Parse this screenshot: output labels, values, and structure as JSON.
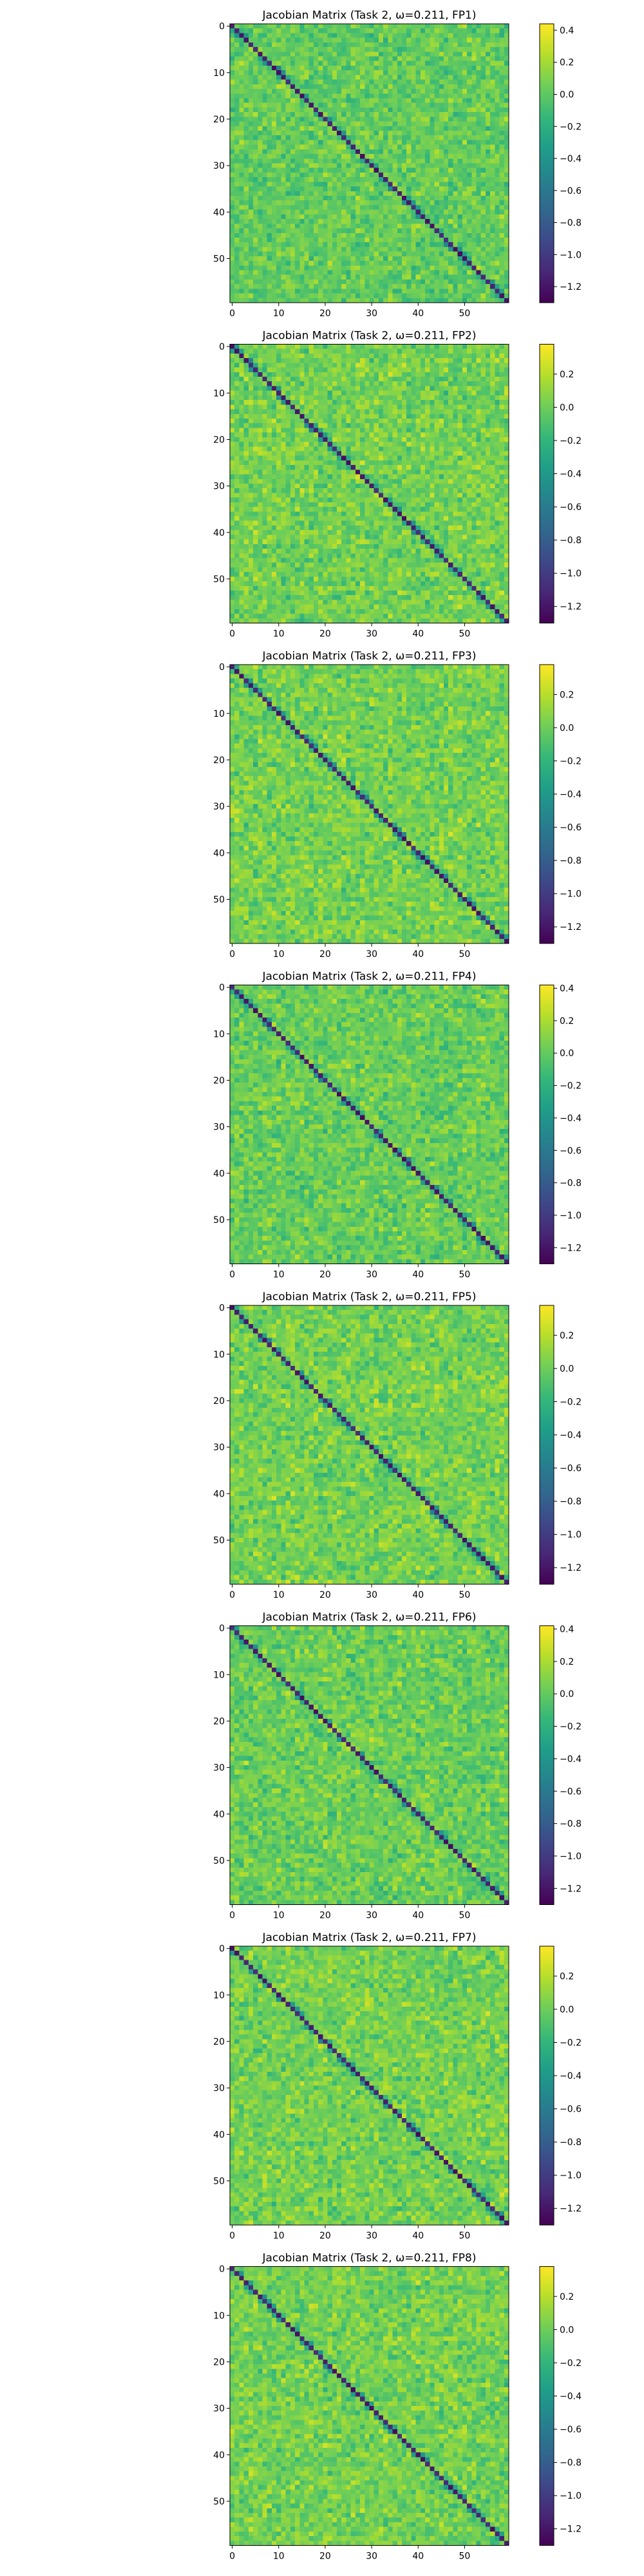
{
  "figure": {
    "background": "#ffffff",
    "colormap": "viridis",
    "colors": {
      "viridis_stops": [
        "#440154",
        "#482878",
        "#3e4989",
        "#31688e",
        "#26828e",
        "#1f9e89",
        "#35b779",
        "#6ece58",
        "#b5de2b",
        "#fde725"
      ]
    }
  },
  "chart_data": [
    {
      "type": "heatmap",
      "title": "Jacobian Matrix (Task 2, ω=0.211, FP1)",
      "matrix_size": 60,
      "xticks": [
        0,
        10,
        20,
        30,
        40,
        50
      ],
      "yticks": [
        0,
        10,
        20,
        30,
        40,
        50
      ],
      "xlim": [
        -0.5,
        59.5
      ],
      "ylim": [
        59.5,
        -0.5
      ],
      "colorbar": {
        "vmin": -1.3,
        "vmax": 0.44,
        "ticks": [
          -1.2,
          -1.0,
          -0.8,
          -0.6,
          -0.4,
          -0.2,
          0.0,
          0.2,
          0.4
        ]
      },
      "diagonal_mean": -1.15,
      "offdiag_mean": 0.02,
      "offdiag_spread": 0.18,
      "seed": 11
    },
    {
      "type": "heatmap",
      "title": "Jacobian Matrix (Task 2, ω=0.211, FP2)",
      "matrix_size": 60,
      "xticks": [
        0,
        10,
        20,
        30,
        40,
        50
      ],
      "yticks": [
        0,
        10,
        20,
        30,
        40,
        50
      ],
      "xlim": [
        -0.5,
        59.5
      ],
      "ylim": [
        59.5,
        -0.5
      ],
      "colorbar": {
        "vmin": -1.3,
        "vmax": 0.38,
        "ticks": [
          -1.2,
          -1.0,
          -0.8,
          -0.6,
          -0.4,
          -0.2,
          0.0,
          0.2
        ]
      },
      "diagonal_mean": -1.15,
      "offdiag_mean": 0.02,
      "offdiag_spread": 0.18,
      "seed": 23
    },
    {
      "type": "heatmap",
      "title": "Jacobian Matrix (Task 2, ω=0.211, FP3)",
      "matrix_size": 60,
      "xticks": [
        0,
        10,
        20,
        30,
        40,
        50
      ],
      "yticks": [
        0,
        10,
        20,
        30,
        40,
        50
      ],
      "xlim": [
        -0.5,
        59.5
      ],
      "ylim": [
        59.5,
        -0.5
      ],
      "colorbar": {
        "vmin": -1.3,
        "vmax": 0.38,
        "ticks": [
          -1.2,
          -1.0,
          -0.8,
          -0.6,
          -0.4,
          -0.2,
          0.0,
          0.2
        ]
      },
      "diagonal_mean": -1.15,
      "offdiag_mean": 0.02,
      "offdiag_spread": 0.18,
      "seed": 37
    },
    {
      "type": "heatmap",
      "title": "Jacobian Matrix (Task 2, ω=0.211, FP4)",
      "matrix_size": 60,
      "xticks": [
        0,
        10,
        20,
        30,
        40,
        50
      ],
      "yticks": [
        0,
        10,
        20,
        30,
        40,
        50
      ],
      "xlim": [
        -0.5,
        59.5
      ],
      "ylim": [
        59.5,
        -0.5
      ],
      "colorbar": {
        "vmin": -1.3,
        "vmax": 0.42,
        "ticks": [
          -1.2,
          -1.0,
          -0.8,
          -0.6,
          -0.4,
          -0.2,
          0.0,
          0.2,
          0.4
        ]
      },
      "diagonal_mean": -1.15,
      "offdiag_mean": 0.02,
      "offdiag_spread": 0.18,
      "seed": 41
    },
    {
      "type": "heatmap",
      "title": "Jacobian Matrix (Task 2, ω=0.211, FP5)",
      "matrix_size": 60,
      "xticks": [
        0,
        10,
        20,
        30,
        40,
        50
      ],
      "yticks": [
        0,
        10,
        20,
        30,
        40,
        50
      ],
      "xlim": [
        -0.5,
        59.5
      ],
      "ylim": [
        59.5,
        -0.5
      ],
      "colorbar": {
        "vmin": -1.3,
        "vmax": 0.38,
        "ticks": [
          -1.2,
          -1.0,
          -0.8,
          -0.6,
          -0.4,
          -0.2,
          0.0,
          0.2
        ]
      },
      "diagonal_mean": -1.15,
      "offdiag_mean": 0.02,
      "offdiag_spread": 0.18,
      "seed": 53
    },
    {
      "type": "heatmap",
      "title": "Jacobian Matrix (Task 2, ω=0.211, FP6)",
      "matrix_size": 60,
      "xticks": [
        0,
        10,
        20,
        30,
        40,
        50
      ],
      "yticks": [
        0,
        10,
        20,
        30,
        40,
        50
      ],
      "xlim": [
        -0.5,
        59.5
      ],
      "ylim": [
        59.5,
        -0.5
      ],
      "colorbar": {
        "vmin": -1.3,
        "vmax": 0.42,
        "ticks": [
          -1.2,
          -1.0,
          -0.8,
          -0.6,
          -0.4,
          -0.2,
          0.0,
          0.2,
          0.4
        ]
      },
      "diagonal_mean": -1.15,
      "offdiag_mean": 0.02,
      "offdiag_spread": 0.18,
      "seed": 67
    },
    {
      "type": "heatmap",
      "title": "Jacobian Matrix (Task 2, ω=0.211, FP7)",
      "matrix_size": 60,
      "xticks": [
        0,
        10,
        20,
        30,
        40,
        50
      ],
      "yticks": [
        0,
        10,
        20,
        30,
        40,
        50
      ],
      "xlim": [
        -0.5,
        59.5
      ],
      "ylim": [
        59.5,
        -0.5
      ],
      "colorbar": {
        "vmin": -1.3,
        "vmax": 0.38,
        "ticks": [
          -1.2,
          -1.0,
          -0.8,
          -0.6,
          -0.4,
          -0.2,
          0.0,
          0.2
        ]
      },
      "diagonal_mean": -1.15,
      "offdiag_mean": 0.02,
      "offdiag_spread": 0.18,
      "seed": 79
    },
    {
      "type": "heatmap",
      "title": "Jacobian Matrix (Task 2, ω=0.211, FP8)",
      "matrix_size": 60,
      "xticks": [
        0,
        10,
        20,
        30,
        40,
        50
      ],
      "yticks": [
        0,
        10,
        20,
        30,
        40,
        50
      ],
      "xlim": [
        -0.5,
        59.5
      ],
      "ylim": [
        59.5,
        -0.5
      ],
      "colorbar": {
        "vmin": -1.3,
        "vmax": 0.38,
        "ticks": [
          -1.2,
          -1.0,
          -0.8,
          -0.6,
          -0.4,
          -0.2,
          0.0,
          0.2
        ]
      },
      "diagonal_mean": -1.15,
      "offdiag_mean": 0.02,
      "offdiag_spread": 0.18,
      "seed": 83
    }
  ]
}
